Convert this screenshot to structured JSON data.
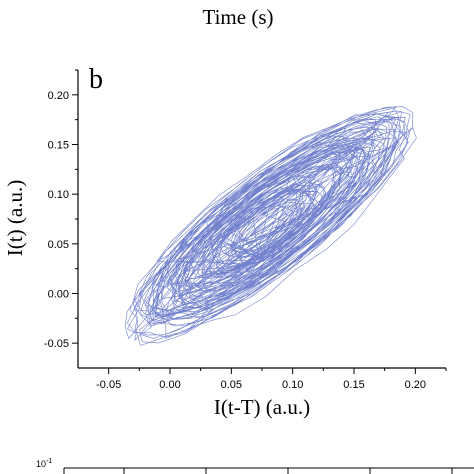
{
  "top_caption": "Time (s)",
  "chart_data": {
    "type": "line",
    "panel_label": "b",
    "xlabel": "I(t-T) (a.u.)",
    "ylabel": "I(t) (a.u.)",
    "xlim": [
      -0.075,
      0.225
    ],
    "ylim": [
      -0.075,
      0.225
    ],
    "xticks": [
      -0.05,
      0.0,
      0.05,
      0.1,
      0.15,
      0.2
    ],
    "xtick_labels": [
      "-0.05",
      "0.00",
      "0.05",
      "0.10",
      "0.15",
      "0.20"
    ],
    "yticks": [
      -0.05,
      0.0,
      0.05,
      0.1,
      0.15,
      0.2
    ],
    "ytick_labels": [
      "-0.05",
      "0.00",
      "0.05",
      "0.10",
      "0.15",
      "0.20"
    ],
    "grid": false,
    "line_color": "#5a6cc4",
    "trajectory": {
      "description_type": "phase-space loops",
      "center": [
        0.08,
        0.07
      ],
      "extent_x": [
        -0.05,
        0.19
      ],
      "extent_y": [
        -0.045,
        0.185
      ],
      "loops": 80
    },
    "bottom_panel": {
      "ytick_labels": [
        "10^-1"
      ]
    }
  }
}
